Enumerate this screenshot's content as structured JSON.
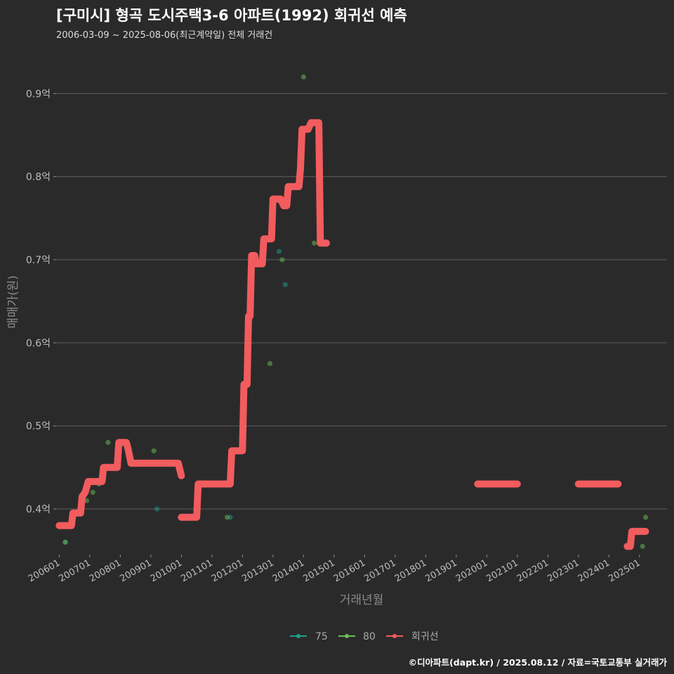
{
  "title": "[구미시] 형곡 도시주택3-6 아파트(1992) 회귀선 예측",
  "subtitle": "2006-03-09 ~ 2025-08-06(최근계약일) 전체 거래건",
  "caption": "©디아파트(dapt.kr) / 2025.08.12 / 자료=국토교통부 실거래가",
  "colors": {
    "background": "#2b2a2b",
    "series_75": "#1f9e89",
    "series_80": "#6abf53",
    "regression": "#f25c5e"
  },
  "chart_data": {
    "type": "scatter",
    "xlabel": "거래년월",
    "ylabel": "매매가(원)",
    "xlim": [
      2005.9,
      2025.9
    ],
    "ylim": [
      0.345,
      0.945
    ],
    "y_ticks": [
      {
        "value": 0.4,
        "label": "0.4억"
      },
      {
        "value": 0.5,
        "label": "0.5억"
      },
      {
        "value": 0.6,
        "label": "0.6억"
      },
      {
        "value": 0.7,
        "label": "0.7억"
      },
      {
        "value": 0.8,
        "label": "0.8억"
      },
      {
        "value": 0.9,
        "label": "0.9억"
      }
    ],
    "x_ticks": [
      {
        "value": 2006,
        "label": "200601"
      },
      {
        "value": 2007,
        "label": "200701"
      },
      {
        "value": 2008,
        "label": "200801"
      },
      {
        "value": 2009,
        "label": "200901"
      },
      {
        "value": 2010,
        "label": "201001"
      },
      {
        "value": 2011,
        "label": "201101"
      },
      {
        "value": 2012,
        "label": "201201"
      },
      {
        "value": 2013,
        "label": "201301"
      },
      {
        "value": 2014,
        "label": "201401"
      },
      {
        "value": 2015,
        "label": "201501"
      },
      {
        "value": 2016,
        "label": "201601"
      },
      {
        "value": 2017,
        "label": "201701"
      },
      {
        "value": 2018,
        "label": "201801"
      },
      {
        "value": 2019,
        "label": "201901"
      },
      {
        "value": 2020,
        "label": "202001"
      },
      {
        "value": 2021,
        "label": "202101"
      },
      {
        "value": 2022,
        "label": "202201"
      },
      {
        "value": 2023,
        "label": "202301"
      },
      {
        "value": 2024,
        "label": "202401"
      },
      {
        "value": 2025,
        "label": "202501"
      }
    ],
    "legend": [
      {
        "key": "75",
        "label": "75",
        "color": "#1f9e89"
      },
      {
        "key": "80",
        "label": "80",
        "color": "#6abf53"
      },
      {
        "key": "reg",
        "label": "회귀선",
        "color": "#f25c5e"
      }
    ],
    "series": [
      {
        "name": "75",
        "points": [
          [
            2006.2,
            0.36
          ],
          [
            2009.2,
            0.4
          ],
          [
            2011.6,
            0.39
          ],
          [
            2013.2,
            0.71
          ],
          [
            2013.4,
            0.67
          ]
        ]
      },
      {
        "name": "80",
        "points": [
          [
            2006.2,
            0.36
          ],
          [
            2006.7,
            0.4
          ],
          [
            2006.9,
            0.41
          ],
          [
            2007.1,
            0.42
          ],
          [
            2007.3,
            0.43
          ],
          [
            2007.6,
            0.48
          ],
          [
            2009.1,
            0.47
          ],
          [
            2011.5,
            0.39
          ],
          [
            2012.0,
            0.47
          ],
          [
            2012.9,
            0.575
          ],
          [
            2013.3,
            0.7
          ],
          [
            2014.0,
            0.92
          ],
          [
            2014.35,
            0.72
          ],
          [
            2025.1,
            0.355
          ],
          [
            2025.2,
            0.39
          ]
        ]
      },
      {
        "name": "회귀선",
        "segments": [
          [
            [
              2006.0,
              0.38
            ],
            [
              2006.4,
              0.38
            ],
            [
              2006.45,
              0.395
            ],
            [
              2006.7,
              0.395
            ],
            [
              2006.75,
              0.415
            ],
            [
              2006.85,
              0.42
            ],
            [
              2006.95,
              0.433
            ],
            [
              2007.4,
              0.433
            ],
            [
              2007.45,
              0.45
            ],
            [
              2007.9,
              0.45
            ],
            [
              2007.95,
              0.48
            ],
            [
              2008.2,
              0.48
            ],
            [
              2008.25,
              0.473
            ],
            [
              2008.35,
              0.455
            ],
            [
              2009.9,
              0.455
            ],
            [
              2010.0,
              0.44
            ]
          ],
          [
            [
              2010.0,
              0.39
            ],
            [
              2010.5,
              0.39
            ],
            [
              2010.55,
              0.43
            ],
            [
              2011.6,
              0.43
            ],
            [
              2011.65,
              0.47
            ],
            [
              2012.0,
              0.47
            ],
            [
              2012.05,
              0.55
            ],
            [
              2012.15,
              0.55
            ],
            [
              2012.2,
              0.632
            ],
            [
              2012.25,
              0.632
            ],
            [
              2012.3,
              0.705
            ],
            [
              2012.4,
              0.705
            ],
            [
              2012.45,
              0.695
            ],
            [
              2012.65,
              0.695
            ],
            [
              2012.7,
              0.725
            ],
            [
              2012.95,
              0.725
            ],
            [
              2013.0,
              0.773
            ],
            [
              2013.25,
              0.773
            ],
            [
              2013.35,
              0.765
            ],
            [
              2013.45,
              0.765
            ],
            [
              2013.5,
              0.788
            ],
            [
              2013.85,
              0.788
            ],
            [
              2013.9,
              0.81
            ],
            [
              2013.95,
              0.857
            ],
            [
              2014.15,
              0.857
            ],
            [
              2014.25,
              0.865
            ],
            [
              2014.5,
              0.865
            ],
            [
              2014.55,
              0.72
            ],
            [
              2014.75,
              0.72
            ]
          ],
          [
            [
              2019.7,
              0.43
            ],
            [
              2021.0,
              0.43
            ]
          ],
          [
            [
              2023.0,
              0.43
            ],
            [
              2024.3,
              0.43
            ]
          ],
          [
            [
              2024.6,
              0.355
            ],
            [
              2024.7,
              0.355
            ],
            [
              2024.75,
              0.373
            ],
            [
              2025.2,
              0.373
            ]
          ]
        ]
      }
    ]
  }
}
